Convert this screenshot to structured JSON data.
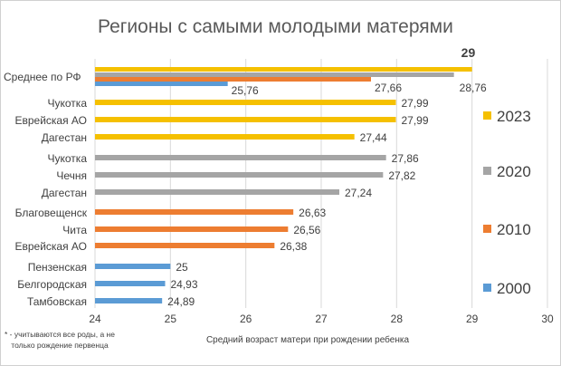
{
  "chart_data": {
    "type": "bar",
    "orientation": "horizontal",
    "title": "Регионы с самыми молодыми матерями",
    "xlabel": "Средний возраст матери при рождении ребенка",
    "ylabel": "",
    "xlim": [
      24,
      30
    ],
    "x_ticks": [
      "24",
      "25",
      "26",
      "27",
      "28",
      "29",
      "30"
    ],
    "grid": true,
    "legend_position": "right",
    "footnote": "* - учитываются все роды, а не только рождение первенца",
    "colors": {
      "2023": "#f5c000",
      "2020": "#a5a5a5",
      "2010": "#ed7d31",
      "2000": "#5b9bd5"
    },
    "legend": [
      "2023",
      "2020",
      "2010",
      "2000"
    ],
    "average": {
      "category": "Среднее по РФ",
      "values": [
        {
          "year": "2023",
          "value": 29,
          "label": "29"
        },
        {
          "year": "2020",
          "value": 28.76,
          "label": "28,76"
        },
        {
          "year": "2010",
          "value": 27.66,
          "label": "27,66"
        },
        {
          "year": "2000",
          "value": 25.76,
          "label": "25,76"
        }
      ]
    },
    "bars": [
      {
        "region": "Чукотка",
        "year": "2023",
        "value": 27.99,
        "label": "27,99"
      },
      {
        "region": "Еврейская АО",
        "year": "2023",
        "value": 27.99,
        "label": "27,99"
      },
      {
        "region": "Дагестан",
        "year": "2023",
        "value": 27.44,
        "label": "27,44"
      },
      {
        "region": "Чукотка",
        "year": "2020",
        "value": 27.86,
        "label": "27,86"
      },
      {
        "region": "Чечня",
        "year": "2020",
        "value": 27.82,
        "label": "27,82"
      },
      {
        "region": "Дагестан",
        "year": "2020",
        "value": 27.24,
        "label": "27,24"
      },
      {
        "region": "Благовещенск",
        "year": "2010",
        "value": 26.63,
        "label": "26,63"
      },
      {
        "region": "Чита",
        "year": "2010",
        "value": 26.56,
        "label": "26,56"
      },
      {
        "region": "Еврейская АО",
        "year": "2010",
        "value": 26.38,
        "label": "26,38"
      },
      {
        "region": "Пензенская",
        "year": "2000",
        "value": 25,
        "label": "25"
      },
      {
        "region": "Белгородская",
        "year": "2000",
        "value": 24.93,
        "label": "24,93"
      },
      {
        "region": "Тамбовская",
        "year": "2000",
        "value": 24.89,
        "label": "24,89"
      }
    ]
  }
}
